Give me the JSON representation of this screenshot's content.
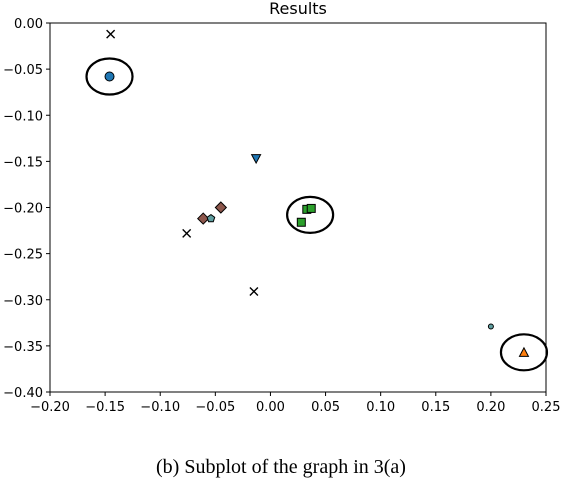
{
  "chart_data": {
    "type": "scatter",
    "title": "Results",
    "xlabel": "",
    "ylabel": "",
    "xlim": [
      -0.2,
      0.25
    ],
    "ylim": [
      -0.4,
      0.0
    ],
    "xticks": [
      "−0.20",
      "−0.15",
      "−0.10",
      "−0.05",
      "0.00",
      "0.05",
      "0.10",
      "0.15",
      "0.20",
      "0.25"
    ],
    "yticks": [
      "0.00",
      "−0.05",
      "−0.10",
      "−0.15",
      "−0.20",
      "−0.25",
      "−0.30",
      "−0.35",
      "−0.40"
    ],
    "grid": false,
    "points": [
      {
        "name": "x-marker-1",
        "marker": "x",
        "x": -0.145,
        "y": -0.012,
        "color": "#000000"
      },
      {
        "name": "circle-blue",
        "marker": "circle",
        "x": -0.146,
        "y": -0.058,
        "color": "#1f77b4"
      },
      {
        "name": "x-marker-2",
        "marker": "x",
        "x": -0.076,
        "y": -0.228,
        "color": "#000000"
      },
      {
        "name": "x-marker-3",
        "marker": "x",
        "x": -0.015,
        "y": -0.291,
        "color": "#000000"
      },
      {
        "name": "triangle-down-blue",
        "marker": "triangle-down",
        "x": -0.013,
        "y": -0.147,
        "color": "#1f77b4"
      },
      {
        "name": "diamond-brown-1",
        "marker": "diamond",
        "x": -0.061,
        "y": -0.212,
        "color": "#8c564b"
      },
      {
        "name": "diamond-brown-2",
        "marker": "diamond",
        "x": -0.045,
        "y": -0.2,
        "color": "#8c564b"
      },
      {
        "name": "pentagon-gray",
        "marker": "pentagon",
        "x": -0.054,
        "y": -0.212,
        "color": "#5f9ea0"
      },
      {
        "name": "square-green-1",
        "marker": "square",
        "x": 0.033,
        "y": -0.202,
        "color": "#2ca02c"
      },
      {
        "name": "square-green-2",
        "marker": "square",
        "x": 0.037,
        "y": -0.201,
        "color": "#2ca02c"
      },
      {
        "name": "square-green-3",
        "marker": "square",
        "x": 0.028,
        "y": -0.216,
        "color": "#2ca02c"
      },
      {
        "name": "small-dot-green",
        "marker": "small-circle",
        "x": 0.2,
        "y": -0.329,
        "color": "#5f9ea0"
      },
      {
        "name": "triangle-up-orange",
        "marker": "triangle-up",
        "x": 0.23,
        "y": -0.357,
        "color": "#ff7f0e"
      }
    ],
    "highlight_circles": [
      {
        "name": "highlight-circle-1",
        "x": -0.146,
        "y": -0.058
      },
      {
        "name": "highlight-circle-2",
        "x": 0.036,
        "y": -0.208
      },
      {
        "name": "highlight-circle-3",
        "x": 0.23,
        "y": -0.357
      }
    ]
  },
  "caption": "(b)  Subplot of the graph in 3(a)"
}
